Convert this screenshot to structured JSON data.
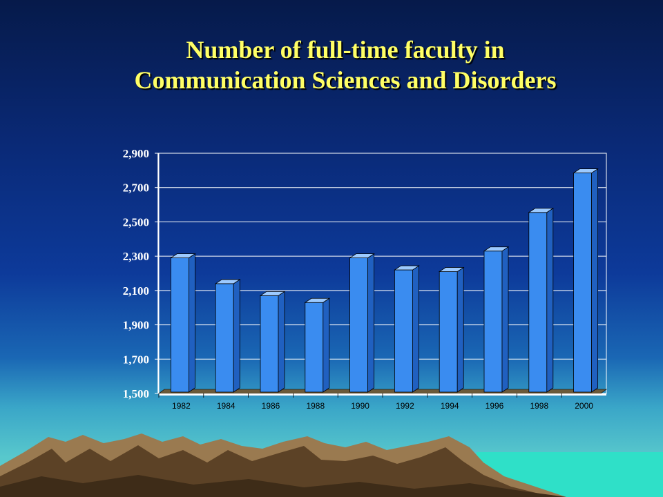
{
  "title_line1": "Number of full-time faculty in",
  "title_line2": "Communication Sciences and Disorders",
  "chart_data": {
    "type": "bar",
    "title": "Number of full-time faculty in Communication Sciences and Disorders",
    "categories": [
      "1982",
      "1984",
      "1986",
      "1988",
      "1990",
      "1992",
      "1994",
      "1996",
      "1998",
      "2000"
    ],
    "values": [
      2290,
      2140,
      2070,
      2030,
      2290,
      2220,
      2210,
      2330,
      2555,
      2785
    ],
    "ylim": [
      1500,
      2900
    ],
    "yticks": [
      "1,500",
      "1,700",
      "1,900",
      "2,100",
      "2,300",
      "2,500",
      "2,700",
      "2,900"
    ],
    "grid": true,
    "colors": {
      "bar": "#3a8cf0",
      "bar_top": "#9ccaff",
      "bar_side": "#2060c0",
      "grid": "#ffffff",
      "floor": "#6b5a3a"
    }
  }
}
